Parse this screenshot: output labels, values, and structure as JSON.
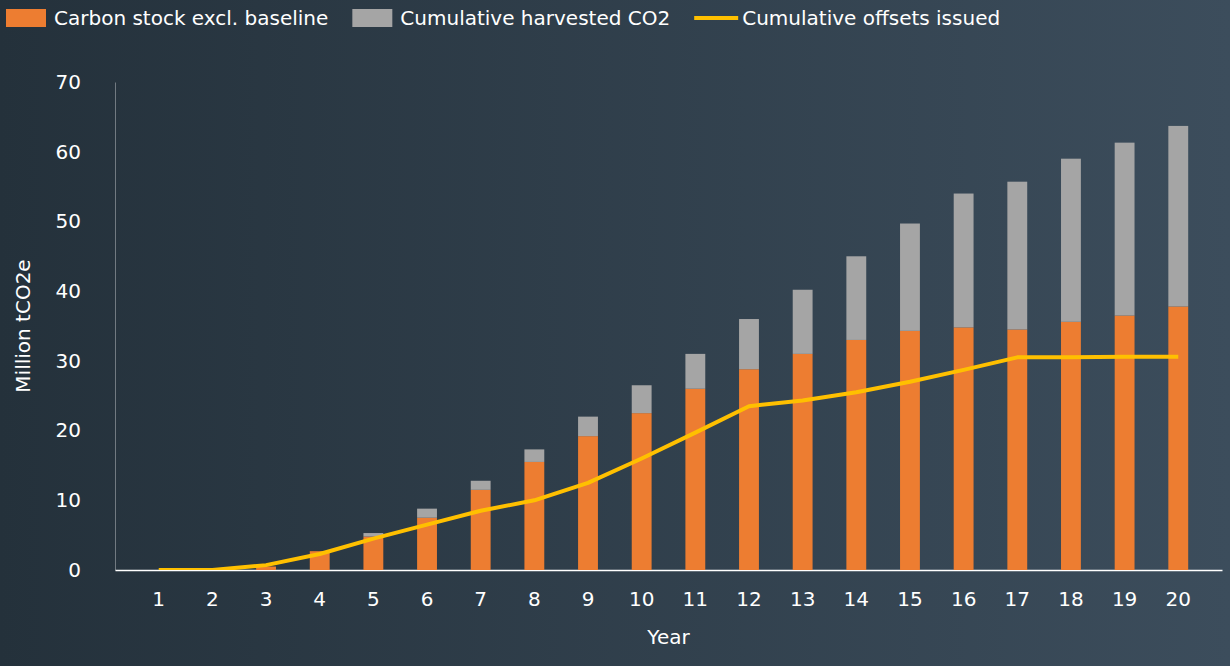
{
  "chart_data": {
    "type": "bar",
    "stacked": true,
    "legend": "top",
    "x_label": "Year",
    "y_label": "Million tCO2e",
    "categories": [
      "1",
      "2",
      "3",
      "4",
      "5",
      "6",
      "7",
      "8",
      "9",
      "10",
      "11",
      "12",
      "13",
      "14",
      "15",
      "16",
      "17",
      "18",
      "19",
      "20"
    ],
    "series": [
      {
        "name": "Carbon stock excl. baseline",
        "color": "#ed7d31",
        "type": "bar",
        "values": [
          0,
          0,
          0.5,
          2.7,
          4.8,
          7.5,
          11.5,
          15.5,
          19.2,
          22.5,
          26,
          28.8,
          31,
          33,
          34.3,
          34.8,
          34.5,
          35.6,
          36.5,
          37.8
        ]
      },
      {
        "name": "Cumulative harvested CO2",
        "color": "#a5a5a5",
        "type": "bar",
        "values": [
          0,
          0,
          0,
          0,
          0.5,
          1.3,
          1.3,
          1.8,
          2.8,
          4,
          5,
          7.2,
          9.2,
          12,
          15.4,
          19.2,
          21.2,
          23.4,
          24.8,
          25.9
        ]
      },
      {
        "name": "Cumulative offsets issued",
        "color": "#ffc000",
        "type": "line",
        "marker": "none",
        "values": [
          0,
          0,
          0.7,
          2.3,
          4.5,
          6.5,
          8.5,
          10,
          12.5,
          16,
          19.7,
          23.5,
          24.3,
          25.5,
          27,
          28.7,
          30.5,
          30.5,
          30.6,
          30.6
        ]
      }
    ],
    "ylim": [
      0,
      70
    ],
    "yticks": [
      0,
      10,
      20,
      30,
      40,
      50,
      60,
      70
    ],
    "grid": false
  }
}
